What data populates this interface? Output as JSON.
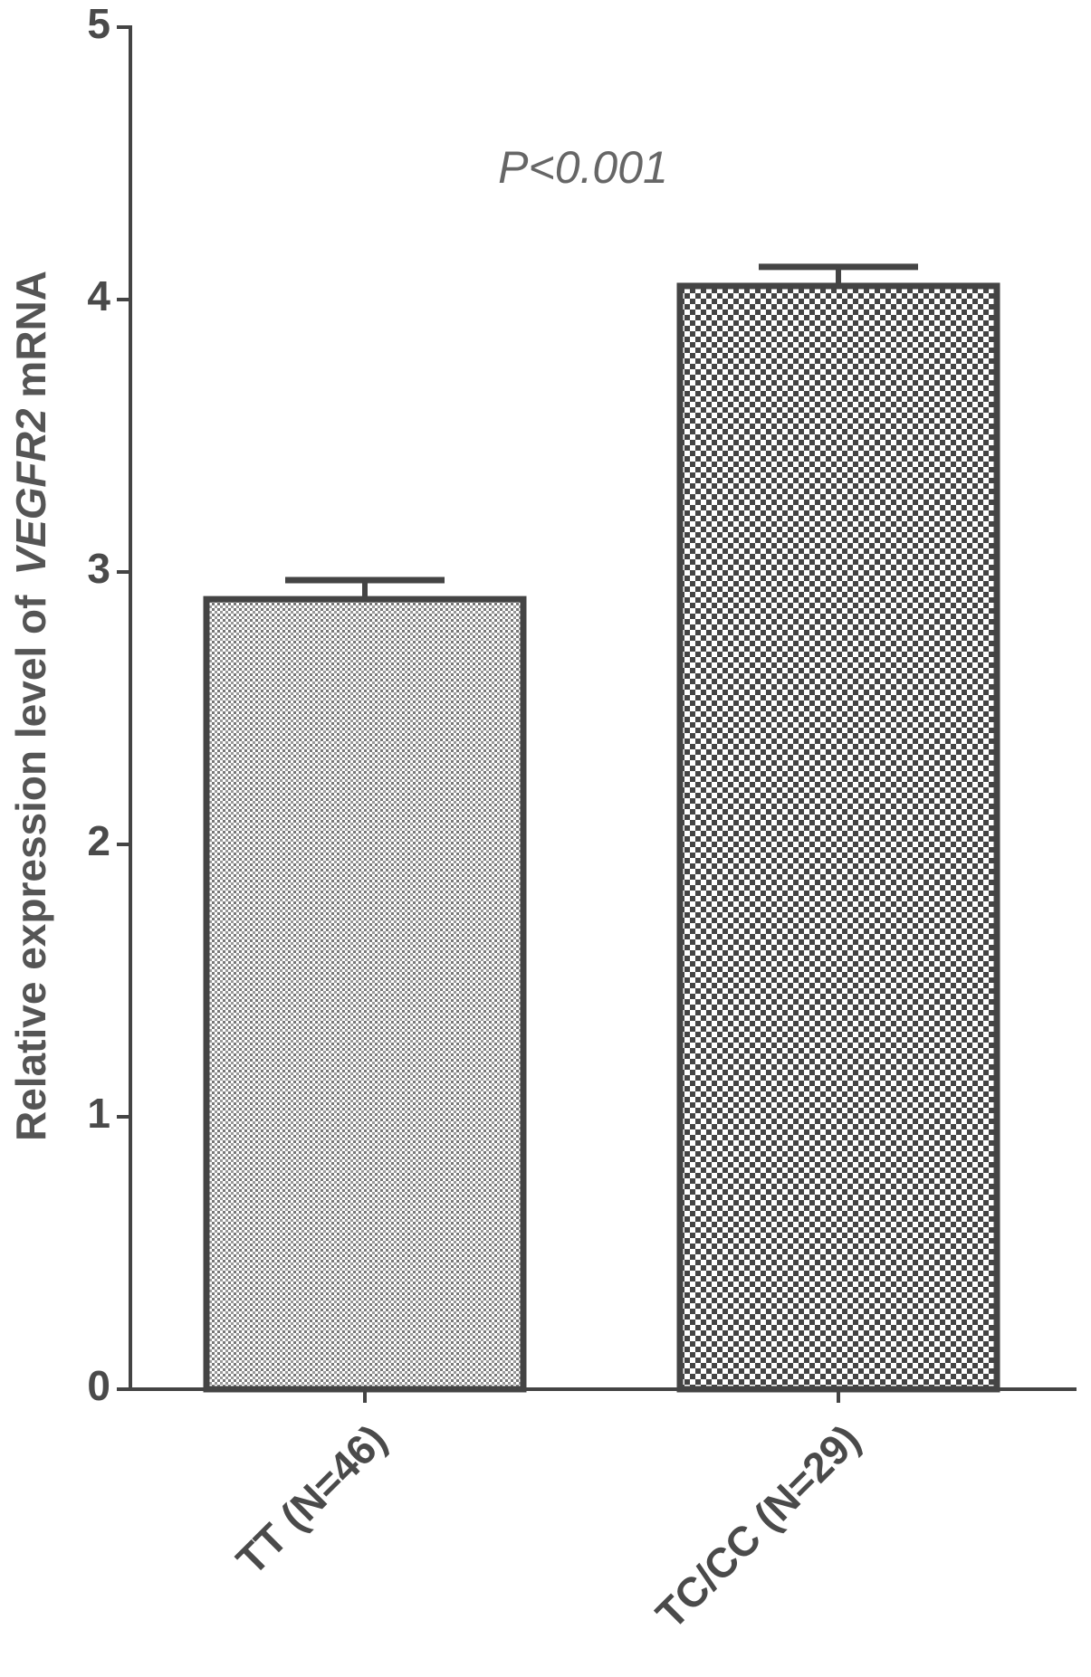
{
  "chart_data": {
    "type": "bar",
    "ylabel": [
      "Relative expression level of",
      "VEGFR2",
      "mRNA"
    ],
    "annotation": "P<0.001",
    "categories": [
      "TT (N=46)",
      "TC/CC (N=29)"
    ],
    "values": [
      2.9,
      4.05
    ],
    "errors": [
      0.07,
      0.07
    ],
    "ylim": [
      0,
      5
    ],
    "yticks": [
      0,
      1,
      2,
      3,
      4,
      5
    ],
    "color": "#444444"
  }
}
